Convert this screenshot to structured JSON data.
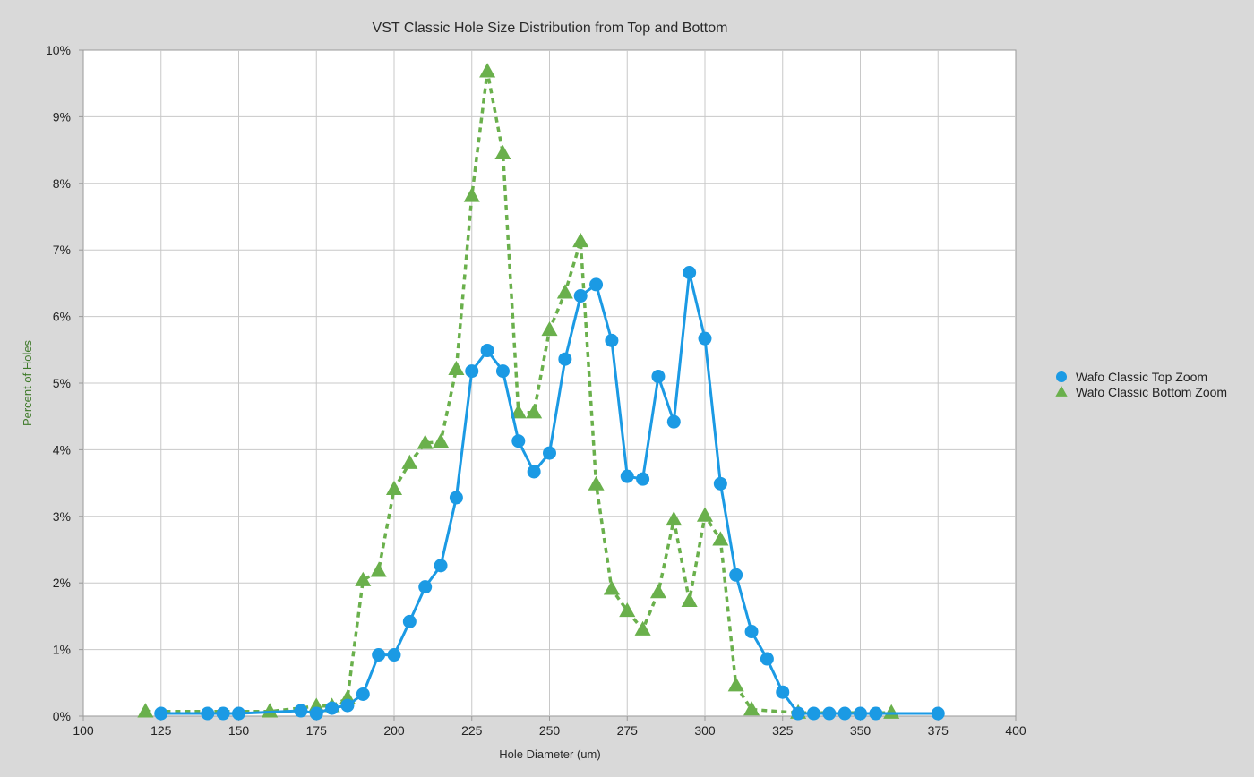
{
  "chart_data": {
    "type": "line",
    "title": "VST Classic Hole Size Distribution from Top and Bottom",
    "xlabel": "Hole Diameter (um)",
    "ylabel": "Percent of Holes",
    "xlim": [
      100,
      400
    ],
    "ylim": [
      0,
      10
    ],
    "x_ticks": [
      100,
      125,
      150,
      175,
      200,
      225,
      250,
      275,
      300,
      325,
      350,
      375,
      400
    ],
    "y_ticks": [
      0,
      1,
      2,
      3,
      4,
      5,
      6,
      7,
      8,
      9,
      10
    ],
    "y_tick_labels": [
      "0%",
      "1%",
      "2%",
      "3%",
      "4%",
      "5%",
      "6%",
      "7%",
      "8%",
      "9%",
      "10%"
    ],
    "grid": true,
    "legend_position": "right",
    "series": [
      {
        "name": "Wafo Classic Top Zoom",
        "color": "#1b9ae4",
        "marker": "circle",
        "line_style": "solid",
        "x": [
          125,
          140,
          145,
          150,
          170,
          175,
          180,
          185,
          190,
          195,
          200,
          205,
          210,
          215,
          220,
          225,
          230,
          235,
          240,
          245,
          250,
          255,
          260,
          265,
          270,
          275,
          280,
          285,
          290,
          295,
          300,
          305,
          310,
          315,
          320,
          325,
          330,
          335,
          340,
          345,
          350,
          355,
          375
        ],
        "values": [
          0.04,
          0.04,
          0.04,
          0.04,
          0.08,
          0.04,
          0.12,
          0.16,
          0.33,
          0.92,
          0.92,
          1.42,
          1.94,
          2.26,
          3.28,
          5.18,
          5.49,
          5.18,
          4.13,
          3.67,
          3.95,
          5.36,
          6.31,
          6.48,
          5.64,
          3.6,
          3.56,
          5.1,
          4.42,
          6.66,
          5.67,
          3.49,
          2.12,
          1.27,
          0.86,
          0.36,
          0.04,
          0.04,
          0.04,
          0.04,
          0.04,
          0.04,
          0.04
        ]
      },
      {
        "name": "Wafo Classic Bottom Zoom",
        "color": "#6ab04c",
        "marker": "triangle",
        "line_style": "dashed",
        "x": [
          120,
          160,
          175,
          180,
          185,
          190,
          195,
          200,
          205,
          210,
          215,
          220,
          225,
          230,
          235,
          240,
          245,
          250,
          255,
          260,
          265,
          270,
          275,
          280,
          285,
          290,
          295,
          300,
          305,
          310,
          315,
          330,
          360
        ],
        "values": [
          0.07,
          0.07,
          0.15,
          0.15,
          0.27,
          2.04,
          2.18,
          3.41,
          3.8,
          4.1,
          4.12,
          5.21,
          7.81,
          9.68,
          8.45,
          4.56,
          4.56,
          5.8,
          6.36,
          7.13,
          3.48,
          1.91,
          1.58,
          1.3,
          1.86,
          2.95,
          1.73,
          3.01,
          2.65,
          0.46,
          0.1,
          0.05,
          0.05
        ]
      }
    ]
  }
}
